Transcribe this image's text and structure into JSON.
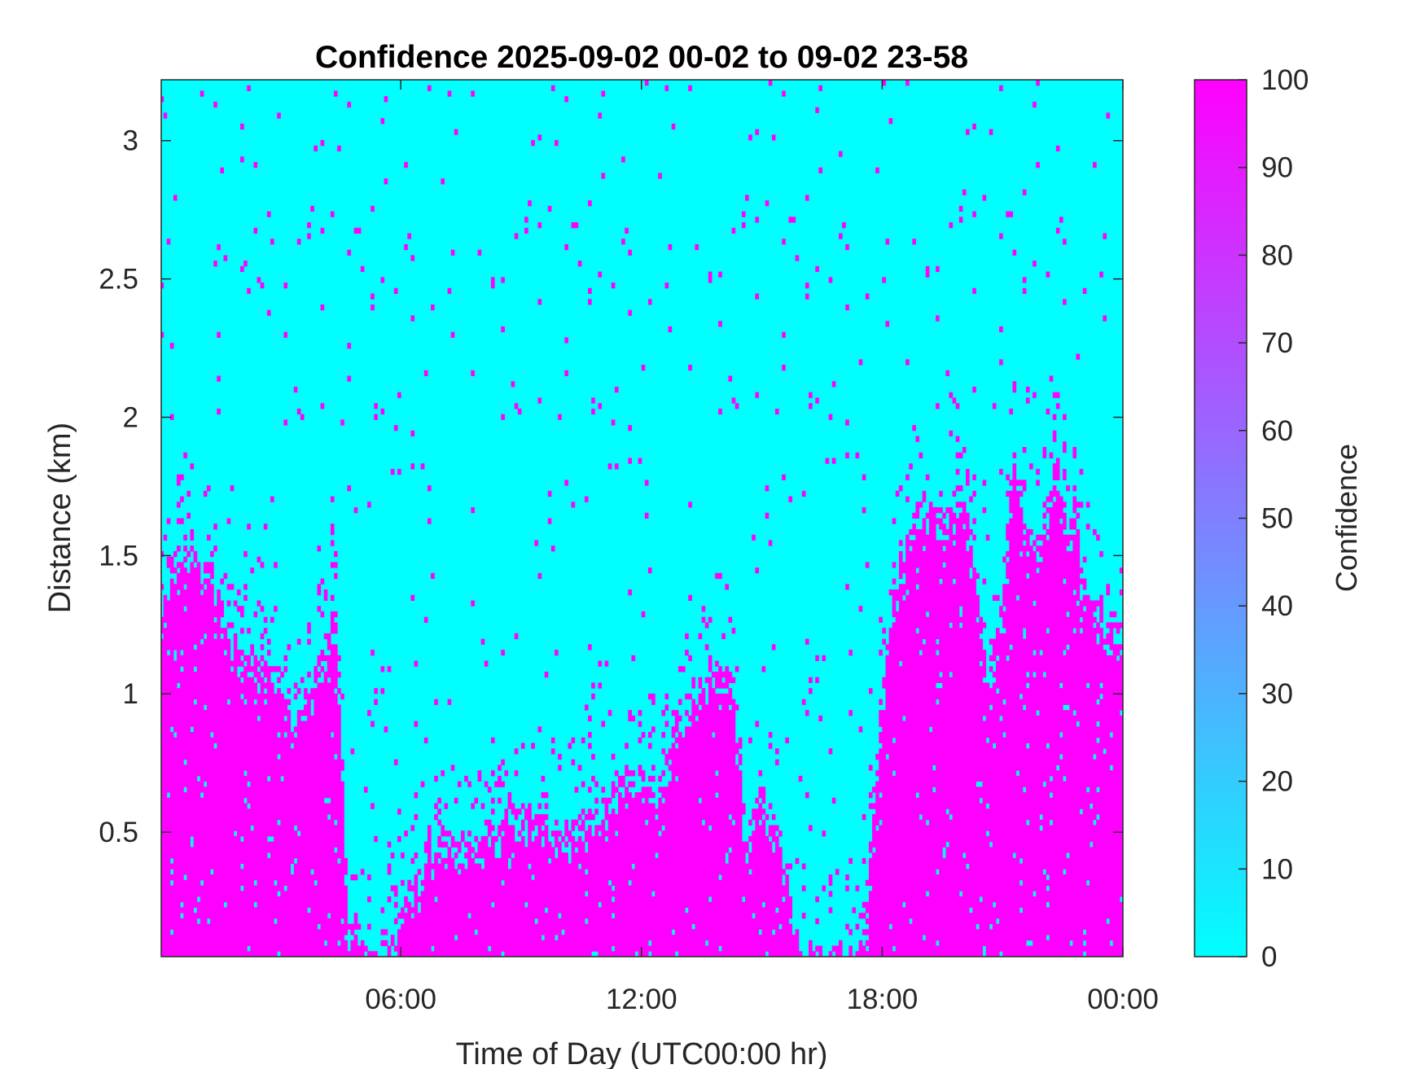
{
  "chart_data": {
    "type": "heatmap",
    "title": "Confidence 2025-09-02 00-02 to 09-02 23-58",
    "xlabel": "Time of Day (UTC00:00 hr)",
    "ylabel": "Distance (km)",
    "x_range_hours": [
      0,
      24
    ],
    "xlim_hours": [
      0.03,
      24
    ],
    "x_ticks": [
      {
        "value": 6,
        "label": "06:00"
      },
      {
        "value": 12,
        "label": "12:00"
      },
      {
        "value": 18,
        "label": "18:00"
      },
      {
        "value": 24,
        "label": "00:00"
      }
    ],
    "ylim_km": [
      0.05,
      3.22
    ],
    "y_ticks": [
      {
        "value": 0.5,
        "label": "0.5"
      },
      {
        "value": 1,
        "label": "1"
      },
      {
        "value": 1.5,
        "label": "1.5"
      },
      {
        "value": 2,
        "label": "2"
      },
      {
        "value": 2.5,
        "label": "2.5"
      },
      {
        "value": 3,
        "label": "3"
      }
    ],
    "colorbar": {
      "label": "Confidence",
      "range": [
        0,
        100
      ],
      "ticks": [
        0,
        10,
        20,
        30,
        40,
        50,
        60,
        70,
        80,
        90,
        100
      ],
      "color_low": "#00ffff",
      "color_high": "#ff00ff"
    },
    "grid": false,
    "values_observed": [
      0,
      100
    ],
    "high_confidence_top_km": [
      {
        "t": 0.0,
        "top": 1.35
      },
      {
        "t": 0.4,
        "top": 1.5
      },
      {
        "t": 0.8,
        "top": 1.55
      },
      {
        "t": 1.2,
        "top": 1.45
      },
      {
        "t": 1.6,
        "top": 1.25
      },
      {
        "t": 2.0,
        "top": 1.2
      },
      {
        "t": 2.5,
        "top": 1.15
      },
      {
        "t": 3.0,
        "top": 1.1
      },
      {
        "t": 3.3,
        "top": 0.9
      },
      {
        "t": 3.5,
        "top": 0.95
      },
      {
        "t": 4.0,
        "top": 1.15
      },
      {
        "t": 4.4,
        "top": 1.3
      },
      {
        "t": 4.55,
        "top": 0.7
      },
      {
        "t": 4.7,
        "top": 0.2
      },
      {
        "t": 5.0,
        "top": 0.12
      },
      {
        "t": 5.3,
        "top": 0.08
      },
      {
        "t": 5.7,
        "top": 0.1
      },
      {
        "t": 6.0,
        "top": 0.2
      },
      {
        "t": 6.3,
        "top": 0.3
      },
      {
        "t": 6.6,
        "top": 0.45
      },
      {
        "t": 7.0,
        "top": 0.5
      },
      {
        "t": 8.0,
        "top": 0.52
      },
      {
        "t": 8.5,
        "top": 0.57
      },
      {
        "t": 9.0,
        "top": 0.6
      },
      {
        "t": 9.5,
        "top": 0.55
      },
      {
        "t": 10.0,
        "top": 0.55
      },
      {
        "t": 10.5,
        "top": 0.54
      },
      {
        "t": 11.0,
        "top": 0.6
      },
      {
        "t": 11.5,
        "top": 0.68
      },
      {
        "t": 12.0,
        "top": 0.7
      },
      {
        "t": 12.5,
        "top": 0.7
      },
      {
        "t": 12.8,
        "top": 0.9
      },
      {
        "t": 13.3,
        "top": 1.0
      },
      {
        "t": 13.8,
        "top": 1.15
      },
      {
        "t": 14.3,
        "top": 1.05
      },
      {
        "t": 14.6,
        "top": 0.5
      },
      {
        "t": 15.0,
        "top": 0.65
      },
      {
        "t": 15.4,
        "top": 0.55
      },
      {
        "t": 15.8,
        "top": 0.15
      },
      {
        "t": 16.2,
        "top": 0.05
      },
      {
        "t": 17.0,
        "top": 0.05
      },
      {
        "t": 17.5,
        "top": 0.05
      },
      {
        "t": 18.2,
        "top": 1.4
      },
      {
        "t": 18.6,
        "top": 1.55
      },
      {
        "t": 19.0,
        "top": 1.75
      },
      {
        "t": 19.5,
        "top": 1.6
      },
      {
        "t": 20.0,
        "top": 1.75
      },
      {
        "t": 20.3,
        "top": 1.5
      },
      {
        "t": 20.6,
        "top": 1.0
      },
      {
        "t": 21.0,
        "top": 1.35
      },
      {
        "t": 21.3,
        "top": 1.85
      },
      {
        "t": 21.6,
        "top": 1.6
      },
      {
        "t": 22.0,
        "top": 1.6
      },
      {
        "t": 22.3,
        "top": 1.85
      },
      {
        "t": 22.7,
        "top": 1.65
      },
      {
        "t": 23.0,
        "top": 1.45
      },
      {
        "t": 23.5,
        "top": 1.3
      },
      {
        "t": 24.0,
        "top": 1.2
      }
    ]
  }
}
